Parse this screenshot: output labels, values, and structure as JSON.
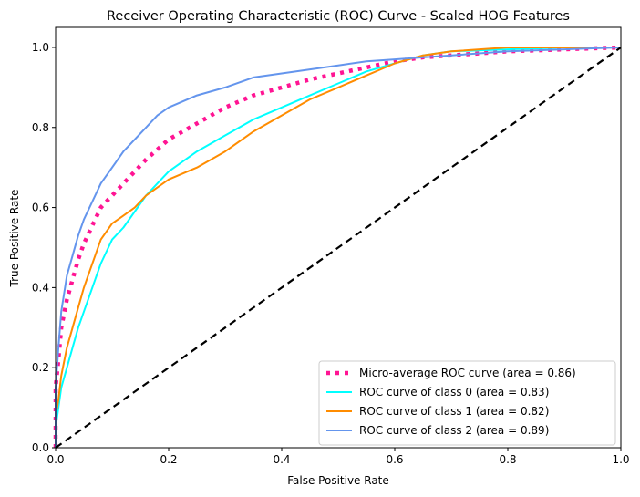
{
  "chart_data": {
    "type": "line",
    "title": "Receiver Operating Characteristic (ROC) Curve - Scaled HOG Features",
    "xlabel": "False Positive Rate",
    "ylabel": "True Positive Rate",
    "xlim": [
      0.0,
      1.0
    ],
    "ylim": [
      0.0,
      1.05
    ],
    "xticks": [
      "0.0",
      "0.2",
      "0.4",
      "0.6",
      "0.8",
      "1.0"
    ],
    "yticks": [
      "0.0",
      "0.2",
      "0.4",
      "0.6",
      "0.8",
      "1.0"
    ],
    "grid": false,
    "legend_position": "lower-right",
    "series": [
      {
        "name": "Micro-average ROC curve (area = 0.86)",
        "color": "#ff1493",
        "style": "dotted",
        "x": [
          0.0,
          0.0,
          0.005,
          0.01,
          0.02,
          0.03,
          0.04,
          0.05,
          0.06,
          0.07,
          0.08,
          0.1,
          0.12,
          0.14,
          0.16,
          0.18,
          0.2,
          0.25,
          0.3,
          0.35,
          0.4,
          0.45,
          0.5,
          0.55,
          0.6,
          0.65,
          0.7,
          0.8,
          0.9,
          1.0
        ],
        "y": [
          0.0,
          0.15,
          0.22,
          0.3,
          0.37,
          0.42,
          0.47,
          0.51,
          0.54,
          0.57,
          0.6,
          0.63,
          0.66,
          0.69,
          0.72,
          0.745,
          0.77,
          0.81,
          0.85,
          0.88,
          0.9,
          0.92,
          0.935,
          0.95,
          0.965,
          0.975,
          0.98,
          0.99,
          0.995,
          1.0
        ]
      },
      {
        "name": "ROC curve of class 0 (area = 0.83)",
        "color": "#00ffff",
        "style": "solid",
        "x": [
          0.0,
          0.0,
          0.005,
          0.01,
          0.02,
          0.03,
          0.04,
          0.05,
          0.06,
          0.07,
          0.08,
          0.1,
          0.12,
          0.14,
          0.16,
          0.18,
          0.2,
          0.25,
          0.3,
          0.35,
          0.4,
          0.45,
          0.5,
          0.55,
          0.6,
          0.65,
          0.7,
          0.8,
          0.9,
          1.0
        ],
        "y": [
          0.0,
          0.05,
          0.1,
          0.15,
          0.2,
          0.25,
          0.3,
          0.34,
          0.38,
          0.42,
          0.46,
          0.52,
          0.55,
          0.59,
          0.63,
          0.66,
          0.69,
          0.74,
          0.78,
          0.82,
          0.85,
          0.88,
          0.91,
          0.94,
          0.96,
          0.98,
          0.99,
          0.995,
          1.0,
          1.0
        ]
      },
      {
        "name": "ROC curve of class 1 (area = 0.82)",
        "color": "#ff8c00",
        "style": "solid",
        "x": [
          0.0,
          0.0,
          0.005,
          0.01,
          0.02,
          0.03,
          0.04,
          0.05,
          0.06,
          0.07,
          0.08,
          0.1,
          0.12,
          0.14,
          0.16,
          0.18,
          0.2,
          0.25,
          0.3,
          0.35,
          0.4,
          0.45,
          0.5,
          0.55,
          0.6,
          0.65,
          0.7,
          0.8,
          0.9,
          1.0
        ],
        "y": [
          0.0,
          0.08,
          0.12,
          0.18,
          0.25,
          0.3,
          0.35,
          0.4,
          0.44,
          0.48,
          0.52,
          0.56,
          0.58,
          0.6,
          0.63,
          0.65,
          0.67,
          0.7,
          0.74,
          0.79,
          0.83,
          0.87,
          0.9,
          0.93,
          0.96,
          0.98,
          0.99,
          1.0,
          1.0,
          1.0
        ]
      },
      {
        "name": "ROC curve of class 2 (area = 0.89)",
        "color": "#6495ed",
        "style": "solid",
        "x": [
          0.0,
          0.0,
          0.005,
          0.01,
          0.02,
          0.03,
          0.04,
          0.05,
          0.06,
          0.07,
          0.08,
          0.1,
          0.12,
          0.14,
          0.16,
          0.18,
          0.2,
          0.25,
          0.3,
          0.35,
          0.4,
          0.45,
          0.5,
          0.55,
          0.6,
          0.65,
          0.7,
          0.8,
          0.9,
          1.0
        ],
        "y": [
          0.0,
          0.15,
          0.25,
          0.34,
          0.43,
          0.48,
          0.53,
          0.57,
          0.6,
          0.63,
          0.66,
          0.7,
          0.74,
          0.77,
          0.8,
          0.83,
          0.85,
          0.88,
          0.9,
          0.925,
          0.935,
          0.945,
          0.955,
          0.965,
          0.97,
          0.975,
          0.98,
          0.99,
          0.995,
          1.0
        ]
      },
      {
        "name": "",
        "color": "#000000",
        "style": "dashed",
        "x": [
          0.0,
          1.0
        ],
        "y": [
          0.0,
          1.0
        ]
      }
    ]
  }
}
